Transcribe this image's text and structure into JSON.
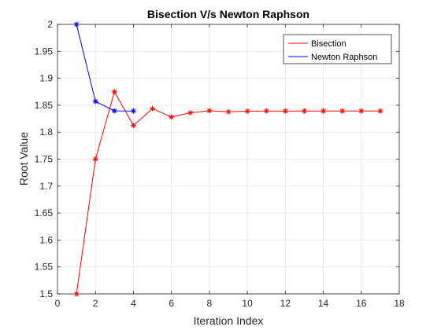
{
  "chart_data": {
    "type": "line",
    "title": "Bisection V/s Newton Raphson",
    "xlabel": "Iteration Index",
    "ylabel": "Root Value",
    "xlim": [
      0,
      18
    ],
    "ylim": [
      1.5,
      2
    ],
    "xticks": [
      0,
      2,
      4,
      6,
      8,
      10,
      12,
      14,
      16,
      18
    ],
    "xtick_labels": [
      "0",
      "2",
      "4",
      "6",
      "8",
      "10",
      "12",
      "14",
      "16",
      "18"
    ],
    "yticks": [
      1.5,
      1.55,
      1.6,
      1.65,
      1.7,
      1.75,
      1.8,
      1.85,
      1.9,
      1.95,
      2
    ],
    "ytick_labels": [
      "1.5",
      "1.55",
      "1.6",
      "1.65",
      "1.7",
      "1.75",
      "1.8",
      "1.85",
      "1.9",
      "1.95",
      "2"
    ],
    "grid": true,
    "legend_position": "top-right",
    "series": [
      {
        "name": "Bisection",
        "color": "#ff0000",
        "marker": "asterisk",
        "x": [
          1,
          2,
          3,
          4,
          5,
          6,
          7,
          8,
          9,
          10,
          11,
          12,
          13,
          14,
          15,
          16,
          17
        ],
        "y": [
          1.5,
          1.75,
          1.875,
          1.8125,
          1.84375,
          1.828125,
          1.8359375,
          1.83984375,
          1.837890625,
          1.8388671875,
          1.83935546875,
          1.839111328125,
          1.8392333984375,
          1.83929443359375,
          1.839263916015625,
          1.8392791748046875,
          1.8392868041992188
        ]
      },
      {
        "name": "Newton Raphson",
        "color": "#0000ff",
        "marker": "asterisk",
        "x": [
          1,
          2,
          3,
          4
        ],
        "y": [
          2,
          1.857,
          1.8395,
          1.8393
        ]
      }
    ]
  }
}
